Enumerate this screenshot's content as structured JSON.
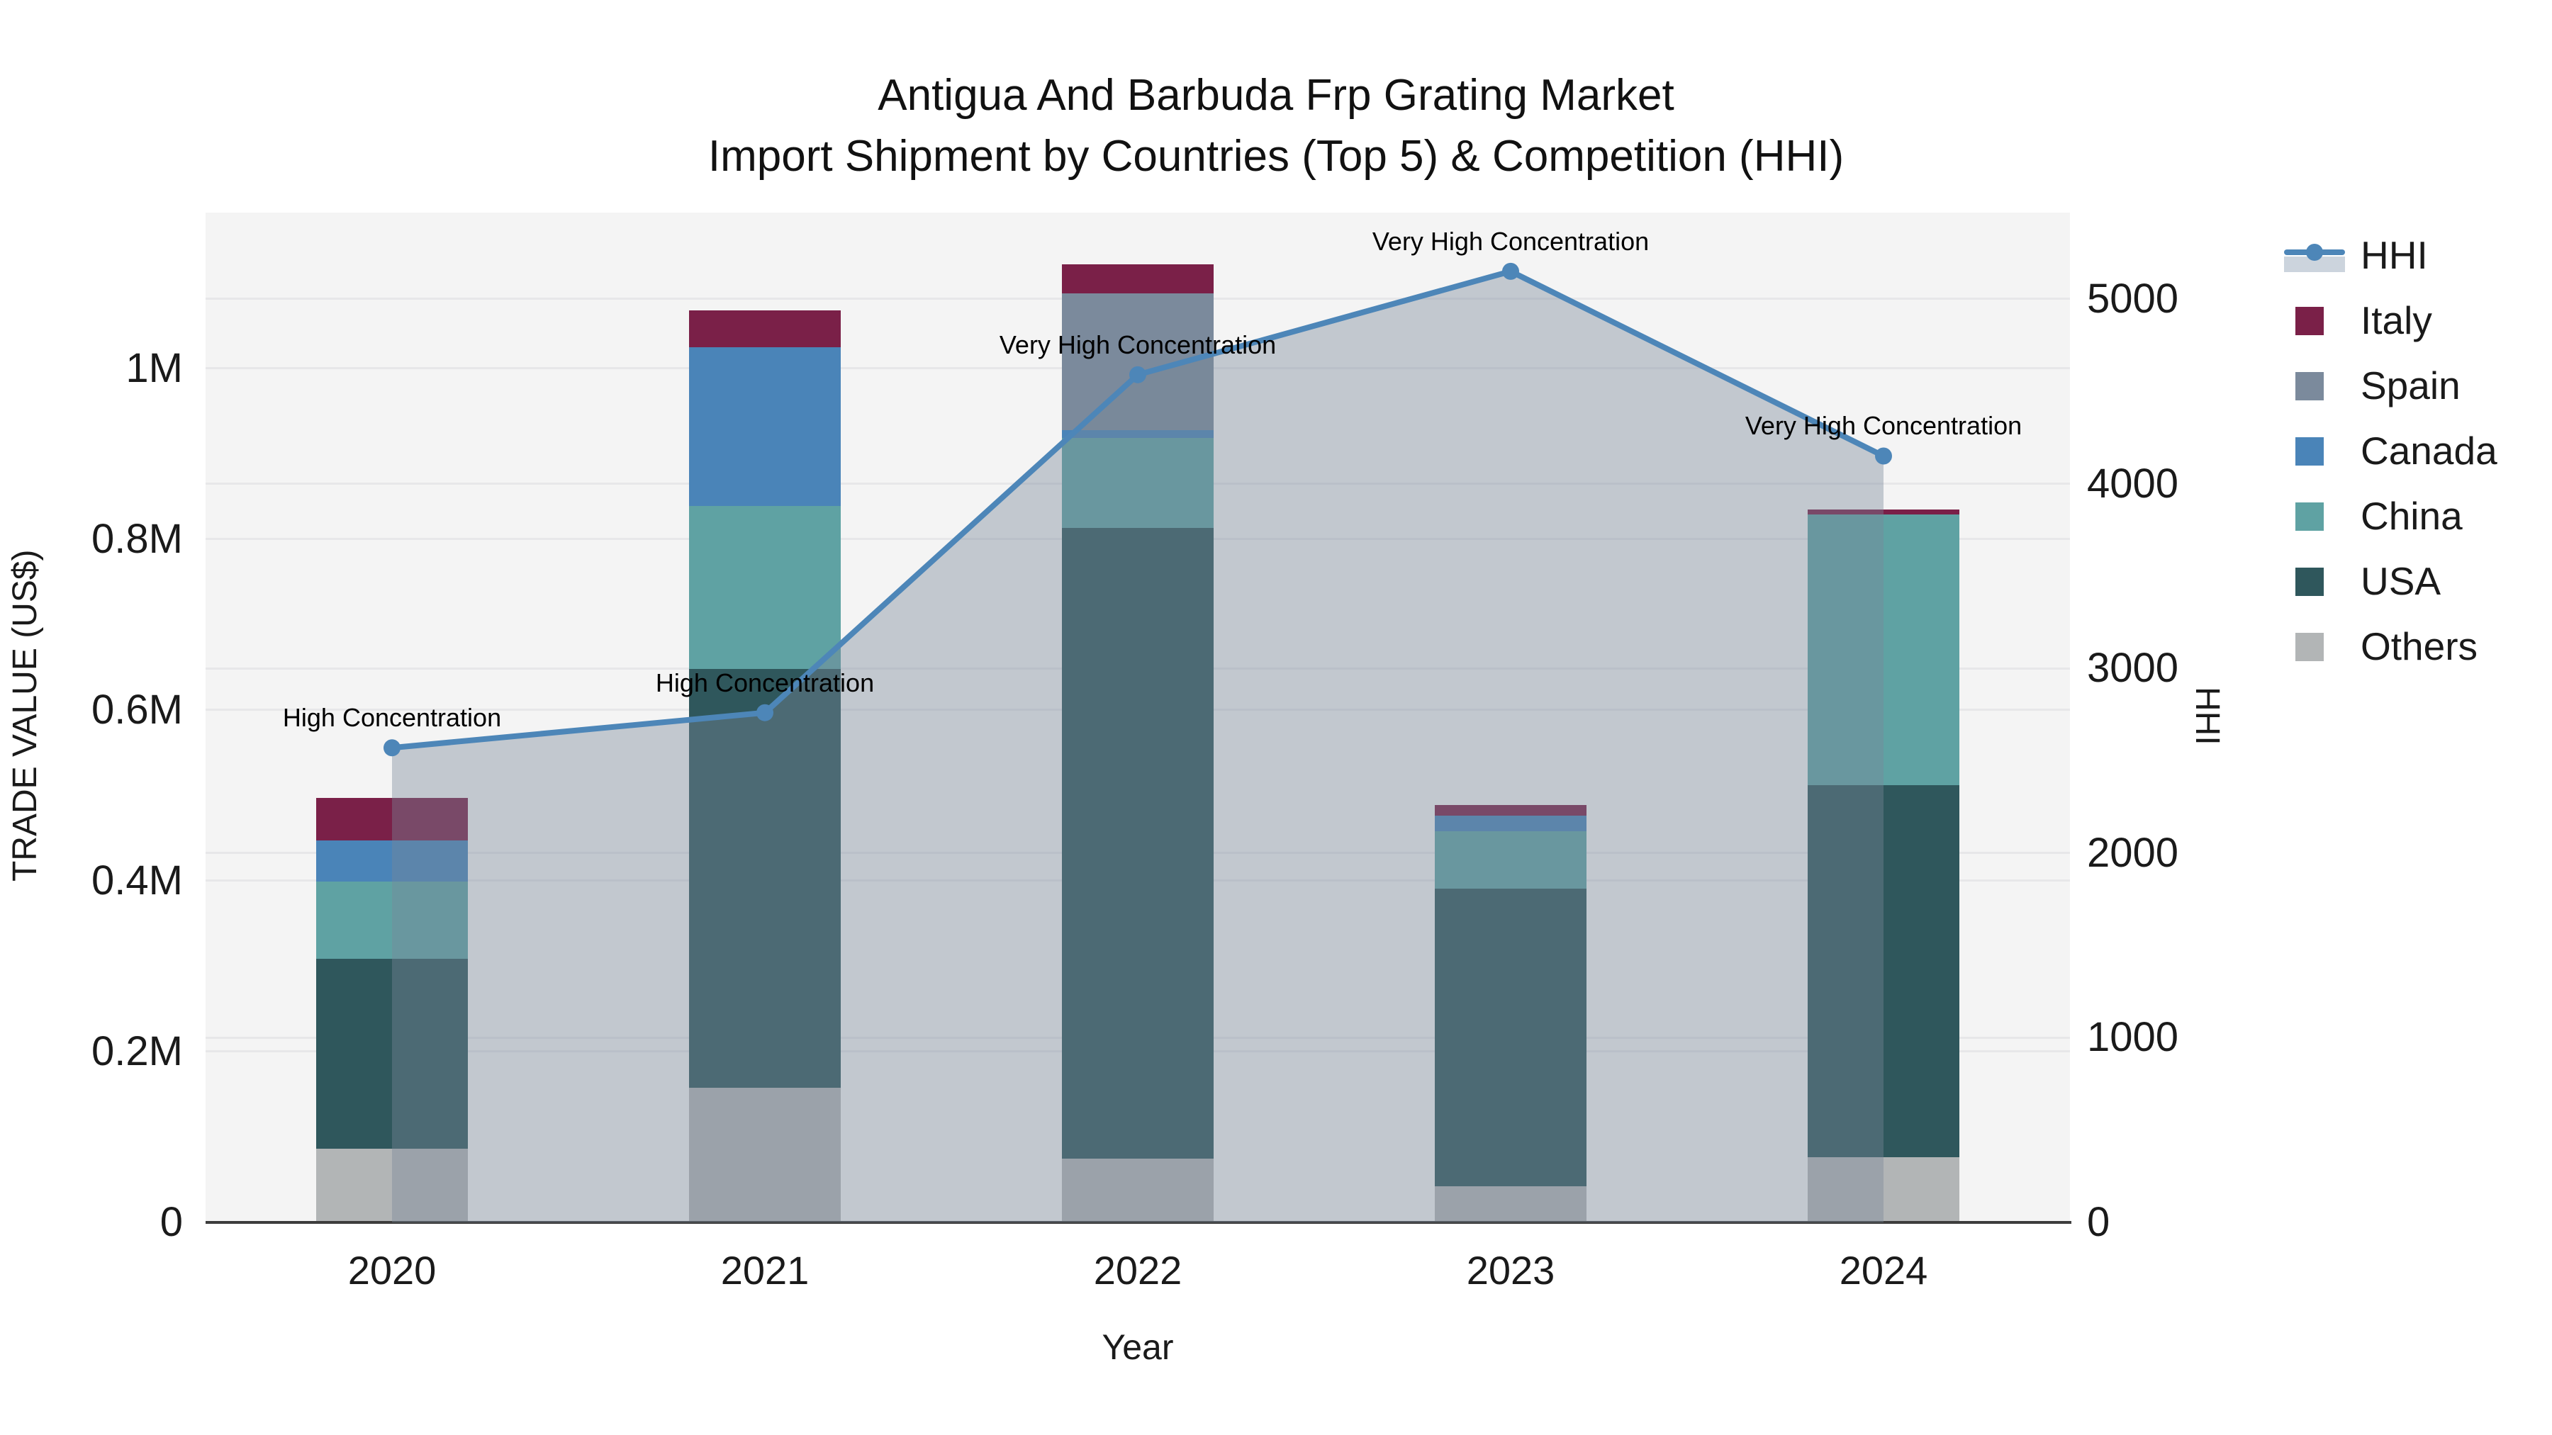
{
  "title": {
    "line1": "Antigua And Barbuda Frp Grating Market",
    "line2": "Import Shipment by Countries (Top 5) & Competition (HHI)"
  },
  "axes": {
    "x": {
      "title": "Year"
    },
    "y_left": {
      "title": "TRADE VALUE (US$)",
      "tick_labels": [
        "0",
        "0.2M",
        "0.4M",
        "0.6M",
        "0.8M",
        "1M"
      ],
      "tick_values": [
        0,
        200000,
        400000,
        600000,
        800000,
        1000000
      ]
    },
    "y_right": {
      "title": "HHI",
      "tick_labels": [
        "0",
        "1000",
        "2000",
        "3000",
        "4000",
        "5000"
      ],
      "tick_values": [
        0,
        1000,
        2000,
        3000,
        4000,
        5000
      ]
    }
  },
  "legend": {
    "items": [
      {
        "label": "HHI",
        "type": "line",
        "color": "#4d86b8"
      },
      {
        "label": "Italy",
        "type": "square",
        "color": "#7a2048"
      },
      {
        "label": "Spain",
        "type": "square",
        "color": "#7b8a9c"
      },
      {
        "label": "Canada",
        "type": "square",
        "color": "#4a84b8"
      },
      {
        "label": "China",
        "type": "square",
        "color": "#5fa2a3"
      },
      {
        "label": "USA",
        "type": "square",
        "color": "#2f575c"
      },
      {
        "label": "Others",
        "type": "square",
        "color": "#b2b5b6"
      }
    ]
  },
  "chart_data": {
    "type": "bar+line",
    "title": "Antigua And Barbuda Frp Grating Market Import Shipment by Countries (Top 5) & Competition (HHI)",
    "categories": [
      "2020",
      "2021",
      "2022",
      "2023",
      "2024"
    ],
    "bar_unit": "US$",
    "bar_series": [
      {
        "name": "Others",
        "color": "#b2b5b6",
        "values": [
          86000,
          158000,
          75000,
          42000,
          76000
        ]
      },
      {
        "name": "USA",
        "color": "#2f575c",
        "values": [
          223000,
          490000,
          738000,
          349000,
          436000
        ]
      },
      {
        "name": "China",
        "color": "#5fa2a3",
        "values": [
          90000,
          191000,
          106000,
          67000,
          317000
        ]
      },
      {
        "name": "Canada",
        "color": "#4a84b8",
        "values": [
          48000,
          186000,
          9000,
          18000,
          0
        ]
      },
      {
        "name": "Spain",
        "color": "#7b8a9c",
        "values": [
          0,
          0,
          160000,
          0,
          0
        ]
      },
      {
        "name": "Italy",
        "color": "#7a2048",
        "values": [
          50000,
          43000,
          34000,
          13000,
          6000
        ]
      }
    ],
    "bar_totals": [
      497000,
      1068000,
      1122000,
      489000,
      835000
    ],
    "line_series": {
      "name": "HHI",
      "values": [
        2570,
        2760,
        4590,
        5150,
        4150
      ],
      "color": "#4d86b8",
      "fill": "tozeroy",
      "fill_color": "rgba(119,136,153,0.40)"
    },
    "annotations": [
      {
        "category": "2020",
        "text": "High Concentration"
      },
      {
        "category": "2021",
        "text": "High Concentration"
      },
      {
        "category": "2022",
        "text": "Very High Concentration"
      },
      {
        "category": "2023",
        "text": "Very High Concentration"
      },
      {
        "category": "2024",
        "text": "Very High Concentration"
      }
    ],
    "xlabel": "Year",
    "ylabel_left": "TRADE VALUE (US$)",
    "ylabel_right": "HHI",
    "ylim_left": [
      0,
      1182500
    ],
    "ylim_right": [
      0,
      5468
    ],
    "grid": true,
    "legend_position": "top-right",
    "plot_bg": "#f4f4f4"
  },
  "colors": {
    "paper_bg": "#ffffff",
    "plot_bg": "#f4f4f4",
    "gridline": "#e7e7e9",
    "axis_line": "#3d3d3d",
    "text": "#1a1a1a"
  }
}
